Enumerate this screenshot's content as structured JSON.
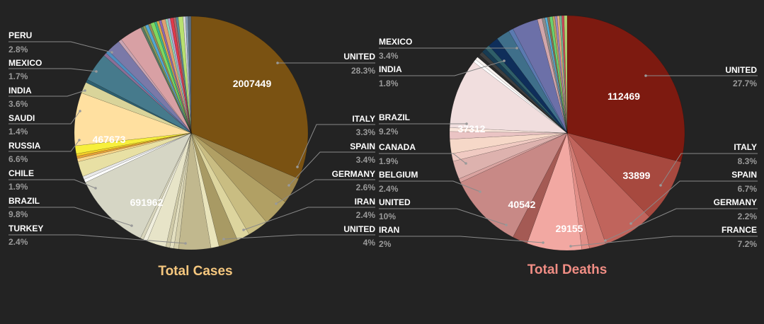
{
  "chart_data": [
    {
      "type": "pie",
      "title": "Total Cases",
      "title_color": "#f5c77e",
      "slices": [
        {
          "label": "UNITED",
          "percent": 28.3,
          "value": 2007449,
          "color": "#7a5212"
        },
        {
          "label": "ITALY",
          "percent": 3.3,
          "color": "#9c854c"
        },
        {
          "label": "SPAIN",
          "percent": 3.4,
          "color": "#b1a064"
        },
        {
          "label": "GERMANY",
          "percent": 2.6,
          "color": "#c9bd82"
        },
        {
          "label": "",
          "percent": 1.6,
          "color": "#ddd59e"
        },
        {
          "label": "IRAN",
          "percent": 2.4,
          "color": "#a89a64"
        },
        {
          "label": "",
          "percent": 1.0,
          "color": "#e9e4bb"
        },
        {
          "label": "UNITED",
          "percent": 4.0,
          "color": "#c1b88e"
        },
        {
          "label": "",
          "percent": 0.6,
          "color": "#d4ceaa"
        },
        {
          "label": "",
          "percent": 0.5,
          "color": "#e3dfc0"
        },
        {
          "label": "",
          "percent": 0.5,
          "color": "#cfcaa8"
        },
        {
          "label": "TURKEY",
          "percent": 2.4,
          "color": "#e7e4c8"
        },
        {
          "label": "",
          "percent": 0.5,
          "color": "#f0eedd"
        },
        {
          "label": "",
          "percent": 0.4,
          "color": "#d8d5bc"
        },
        {
          "label": "BRAZIL",
          "percent": 9.8,
          "value": 691962,
          "color": "#d6d6c5"
        },
        {
          "label": "",
          "percent": 0.4,
          "color": "#ffffff"
        },
        {
          "label": "",
          "percent": 0.4,
          "color": "#e9e9e9"
        },
        {
          "label": "CHILE",
          "percent": 1.9,
          "color": "#e8e0a4"
        },
        {
          "label": "",
          "percent": 0.4,
          "color": "#f7d58a"
        },
        {
          "label": "",
          "percent": 0.3,
          "color": "#e6a23a"
        },
        {
          "label": "",
          "percent": 0.3,
          "color": "#f5d02a"
        },
        {
          "label": "",
          "percent": 1.0,
          "color": "#f7ef3c"
        },
        {
          "label": "RUSSIA",
          "percent": 6.6,
          "value": 467673,
          "color": "#ffe0a0"
        },
        {
          "label": "SAUDI",
          "percent": 1.4,
          "color": "#d9d49a"
        },
        {
          "label": "",
          "percent": 0.4,
          "color": "#2e5f70"
        },
        {
          "label": "INDIA",
          "percent": 3.6,
          "color": "#467a8c"
        },
        {
          "label": "",
          "percent": 0.4,
          "color": "#8a6f96"
        },
        {
          "label": "",
          "percent": 0.4,
          "color": "#4e8fc0"
        },
        {
          "label": "MEXICO",
          "percent": 1.7,
          "color": "#7a79a8"
        },
        {
          "label": "",
          "percent": 0.4,
          "color": "#c9a5b2"
        },
        {
          "label": "PERU",
          "percent": 2.8,
          "color": "#d8a0a4"
        },
        {
          "label": "",
          "percent": 0.3,
          "color": "#567a64"
        },
        {
          "label": "",
          "percent": 0.3,
          "color": "#8a9a5a"
        },
        {
          "label": "",
          "percent": 0.4,
          "color": "#52a6d4"
        },
        {
          "label": "",
          "percent": 0.3,
          "color": "#9a8a58"
        },
        {
          "label": "",
          "percent": 0.5,
          "color": "#7fd860"
        },
        {
          "label": "",
          "percent": 0.3,
          "color": "#3eb48c"
        },
        {
          "label": "",
          "percent": 0.3,
          "color": "#d8a84a"
        },
        {
          "label": "",
          "percent": 0.3,
          "color": "#8a6ab4"
        },
        {
          "label": "",
          "percent": 0.5,
          "color": "#e0a070"
        },
        {
          "label": "",
          "percent": 0.3,
          "color": "#8ed4b8"
        },
        {
          "label": "",
          "percent": 0.3,
          "color": "#b8a4d0"
        },
        {
          "label": "",
          "percent": 0.4,
          "color": "#e03a4a"
        },
        {
          "label": "",
          "percent": 0.3,
          "color": "#aa6868"
        },
        {
          "label": "",
          "percent": 0.3,
          "color": "#5a8a9a"
        },
        {
          "label": "",
          "percent": 0.6,
          "color": "#b8e070"
        },
        {
          "label": "",
          "percent": 0.3,
          "color": "#d8d8d8"
        },
        {
          "label": "",
          "percent": 0.3,
          "color": "#86a0b8"
        },
        {
          "label": "",
          "percent": 0.4,
          "color": "#5a6a7a"
        }
      ]
    },
    {
      "type": "pie",
      "title": "Total Deaths",
      "title_color": "#f08d84",
      "slices": [
        {
          "label": "UNITED",
          "percent": 27.7,
          "value": 112469,
          "color": "#7d1a10"
        },
        {
          "label": "ITALY",
          "percent": 8.3,
          "value": 33899,
          "color": "#a7493f"
        },
        {
          "label": "SPAIN",
          "percent": 6.7,
          "color": "#c0645c"
        },
        {
          "label": "GERMANY",
          "percent": 2.2,
          "color": "#d07a72"
        },
        {
          "label": "",
          "percent": 1.0,
          "color": "#e28f88"
        },
        {
          "label": "FRANCE",
          "percent": 7.2,
          "value": 29155,
          "color": "#f2a8a2"
        },
        {
          "label": "IRAN",
          "percent": 2.0,
          "color": "#a45a54"
        },
        {
          "label": "UNITED",
          "percent": 10.0,
          "value": 40542,
          "color": "#c88986"
        },
        {
          "label": "",
          "percent": 0.5,
          "color": "#d9a3a0"
        },
        {
          "label": "BELGIUM",
          "percent": 2.4,
          "color": "#ddb2ae"
        },
        {
          "label": "",
          "percent": 1.0,
          "color": "#f0cac2"
        },
        {
          "label": "CANADA",
          "percent": 1.9,
          "color": "#f6d8c8"
        },
        {
          "label": "",
          "percent": 1.0,
          "color": "#eac4c4"
        },
        {
          "label": "",
          "percent": 0.5,
          "color": "#fbe6dc"
        },
        {
          "label": "BRAZIL",
          "percent": 9.2,
          "value": 37312,
          "color": "#f1dede"
        },
        {
          "label": "",
          "percent": 0.4,
          "color": "#ffffff"
        },
        {
          "label": "",
          "percent": 0.4,
          "color": "#f7f3f0"
        },
        {
          "label": "",
          "percent": 0.4,
          "color": "#2a2a2a"
        },
        {
          "label": "",
          "percent": 0.5,
          "color": "#3e3e3e"
        },
        {
          "label": "",
          "percent": 0.6,
          "color": "#173b52"
        },
        {
          "label": "",
          "percent": 0.6,
          "color": "#2f5e68"
        },
        {
          "label": "",
          "percent": 1.4,
          "color": "#0f2e5a"
        },
        {
          "label": "INDIA",
          "percent": 1.8,
          "color": "#3f6f8a"
        },
        {
          "label": "",
          "percent": 0.6,
          "color": "#5a7ab0"
        },
        {
          "label": "MEXICO",
          "percent": 3.4,
          "color": "#6c70a8"
        },
        {
          "label": "",
          "percent": 0.6,
          "color": "#d2a6aa"
        },
        {
          "label": "",
          "percent": 0.4,
          "color": "#8a8a8a"
        },
        {
          "label": "",
          "percent": 0.3,
          "color": "#56b0d8"
        },
        {
          "label": "",
          "percent": 0.3,
          "color": "#8a7050"
        },
        {
          "label": "",
          "percent": 0.4,
          "color": "#6ad070"
        },
        {
          "label": "",
          "percent": 0.3,
          "color": "#c0a060"
        },
        {
          "label": "",
          "percent": 0.3,
          "color": "#9a86c0"
        },
        {
          "label": "",
          "percent": 0.3,
          "color": "#e8b080"
        },
        {
          "label": "",
          "percent": 0.3,
          "color": "#74b494"
        },
        {
          "label": "",
          "percent": 0.3,
          "color": "#d0485a"
        },
        {
          "label": "",
          "percent": 0.4,
          "color": "#b0d070"
        }
      ]
    }
  ]
}
